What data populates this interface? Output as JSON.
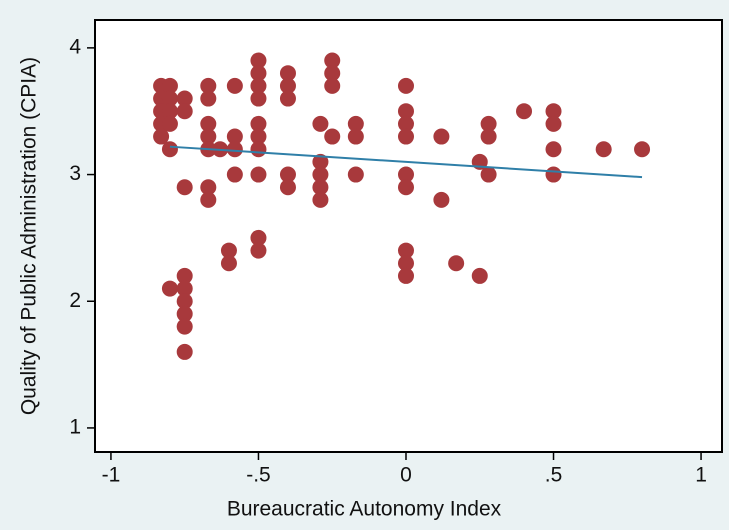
{
  "chart_data": {
    "type": "scatter",
    "x_label": "Bureaucratic Autonomy Index",
    "y_label": "Quality of Public Administration (CPIA)",
    "x": [
      -0.83,
      -0.83,
      -0.83,
      -0.83,
      -0.83,
      -0.8,
      -0.8,
      -0.8,
      -0.8,
      -0.8,
      -0.8,
      -0.75,
      -0.75,
      -0.75,
      -0.75,
      -0.75,
      -0.75,
      -0.75,
      -0.75,
      -0.75,
      -0.67,
      -0.67,
      -0.67,
      -0.67,
      -0.67,
      -0.67,
      -0.67,
      -0.63,
      -0.58,
      -0.58,
      -0.58,
      -0.58,
      -0.6,
      -0.6,
      -0.5,
      -0.5,
      -0.5,
      -0.5,
      -0.5,
      -0.5,
      -0.5,
      -0.5,
      -0.5,
      -0.5,
      -0.4,
      -0.4,
      -0.4,
      -0.4,
      -0.4,
      -0.29,
      -0.29,
      -0.29,
      -0.29,
      -0.29,
      -0.25,
      -0.25,
      -0.25,
      -0.25,
      -0.17,
      -0.17,
      -0.17,
      0,
      0,
      0,
      0,
      0,
      0,
      0,
      0,
      0,
      0.12,
      0.12,
      0.17,
      0.25,
      0.25,
      0.28,
      0.28,
      0.28,
      0.4,
      0.5,
      0.5,
      0.5,
      0.5,
      0.67,
      0.8
    ],
    "y": [
      3.7,
      3.6,
      3.5,
      3.4,
      3.3,
      3.7,
      3.6,
      3.5,
      3.4,
      3.2,
      2.1,
      3.6,
      3.5,
      2.9,
      2.2,
      2.1,
      2.0,
      1.9,
      1.8,
      1.6,
      3.7,
      3.6,
      3.4,
      3.3,
      3.2,
      2.9,
      2.8,
      3.2,
      3.7,
      3.3,
      3.2,
      3.0,
      2.4,
      2.3,
      3.9,
      3.8,
      3.7,
      3.6,
      3.4,
      3.3,
      3.2,
      3.0,
      2.5,
      2.4,
      3.8,
      3.7,
      3.6,
      3.0,
      2.9,
      3.4,
      3.1,
      3.0,
      2.9,
      2.8,
      3.9,
      3.8,
      3.7,
      3.3,
      3.4,
      3.3,
      3.0,
      3.7,
      3.5,
      3.4,
      3.3,
      3.0,
      2.9,
      2.4,
      2.3,
      2.2,
      3.3,
      2.8,
      2.3,
      3.1,
      2.2,
      3.4,
      3.3,
      3.0,
      3.5,
      3.5,
      3.4,
      3.2,
      3.0,
      3.2,
      3.2
    ],
    "color": "#a8393c",
    "fit": {
      "x": [
        -0.8,
        0.8
      ],
      "y": [
        3.22,
        2.98
      ],
      "color": "#2f7fa8"
    },
    "xlim": [
      -1.054,
      1.071
    ],
    "ylim": [
      0.81,
      4.22
    ],
    "xticks": [
      -1,
      {
        "value": -0.5,
        "label": "-.5"
      },
      0,
      {
        "value": 0.5,
        "label": ".5"
      },
      1
    ],
    "yticks": [
      1,
      2,
      3,
      4
    ]
  }
}
